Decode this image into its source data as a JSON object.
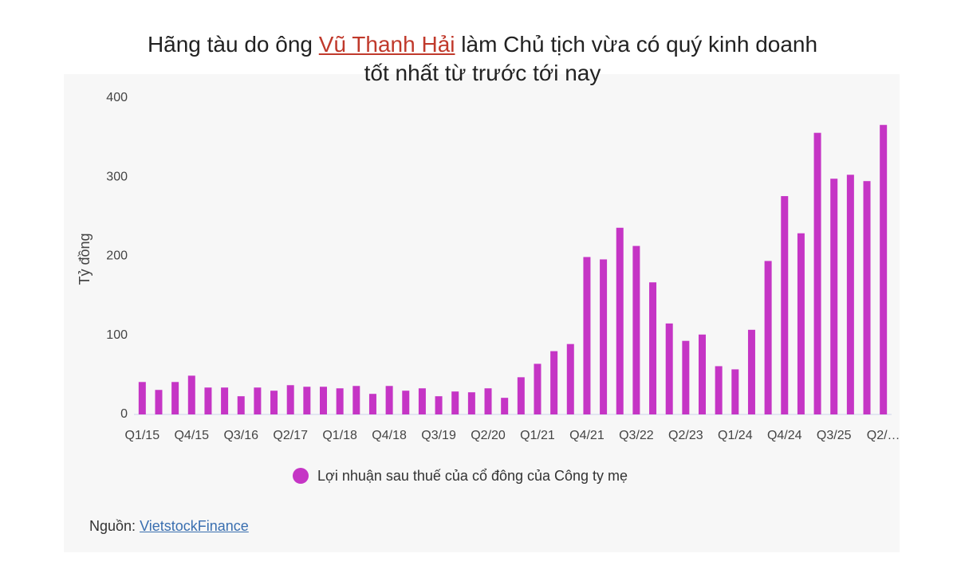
{
  "chart_data": {
    "type": "bar",
    "title": {
      "before": "Hãng tàu do ông ",
      "link": "Vũ Thanh Hải",
      "after": " làm Chủ tịch vừa có quý kinh doanh tốt nhất từ trước tới nay"
    },
    "y_label": "Tỷ đồng",
    "categories": [
      "Q1/15",
      null,
      null,
      "Q4/15",
      null,
      null,
      "Q3/16",
      null,
      null,
      "Q2/17",
      null,
      null,
      "Q1/18",
      null,
      null,
      "Q4/18",
      null,
      null,
      "Q3/19",
      null,
      null,
      "Q2/20",
      null,
      null,
      "Q1/21",
      null,
      null,
      "Q4/21",
      null,
      null,
      "Q3/22",
      null,
      null,
      "Q2/23",
      null,
      null,
      "Q1/24",
      null,
      null,
      "Q4/24",
      null,
      null,
      "Q3/25",
      null,
      null,
      "Q2/…"
    ],
    "series": [
      {
        "name": "Lợi nhuận sau thuế của cổ đông của Công ty mẹ",
        "color": "#c535c5",
        "values": [
          41,
          31,
          41,
          49,
          34,
          34,
          23,
          34,
          30,
          37,
          35,
          35,
          33,
          36,
          26,
          36,
          30,
          33,
          23,
          29,
          28,
          33,
          21,
          47,
          64,
          80,
          89,
          199,
          196,
          236,
          213,
          167,
          115,
          93,
          101,
          61,
          57,
          107,
          194,
          276,
          229,
          356,
          298,
          303,
          295,
          366
        ]
      }
    ],
    "ylim": [
      0,
      400
    ],
    "yticks": [
      0,
      100,
      200,
      300,
      400
    ],
    "grid": false,
    "legend": "bottom",
    "source": {
      "label": "Nguồn:",
      "link": "VietstockFinance"
    }
  }
}
